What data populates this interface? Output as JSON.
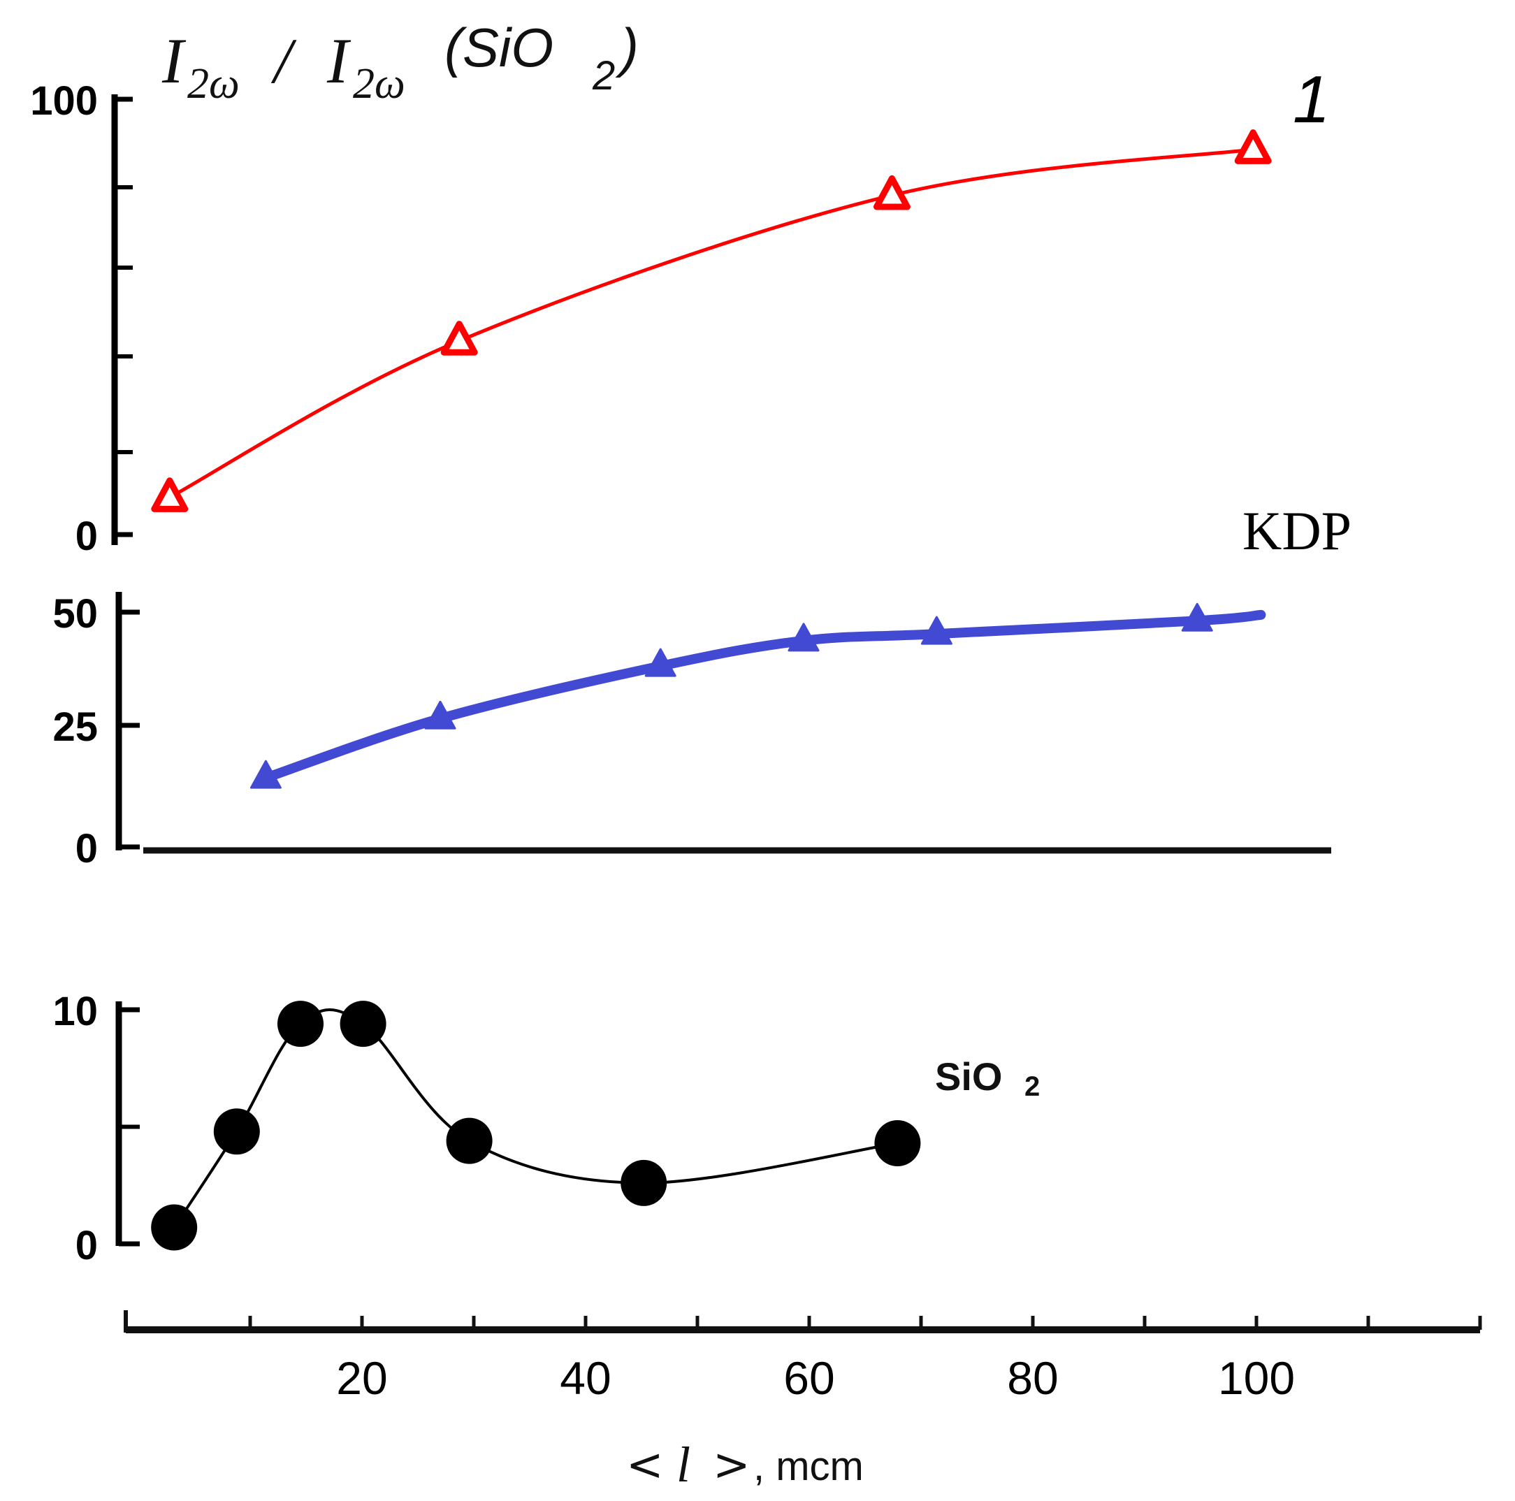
{
  "chart_data": {
    "type": "line",
    "title": "I2ω/I2ω(SiO2)",
    "title_parts": {
      "main": "I",
      "sub": "2ω",
      "slash": "/",
      "ref": "(SiO",
      "ref_sub": "2",
      "ref_close": ")"
    },
    "xlabel": "< l >, mcm",
    "xlabel_parts": {
      "open": "<",
      "var": "l",
      "close": ">",
      "unit": ", mcm"
    },
    "x_axis": {
      "range": [
        -1,
        120
      ],
      "major_ticks": [
        20,
        40,
        60,
        80,
        100
      ],
      "minor_ticks": [
        10,
        30,
        50,
        70,
        90,
        110,
        120
      ],
      "tick_labels": [
        "20",
        "40",
        "60",
        "80",
        "100"
      ]
    },
    "grid": false,
    "panels": [
      {
        "id": "top",
        "ylim": [
          0,
          100
        ],
        "y_tick_labels": [
          {
            "value": 100,
            "label": "100"
          },
          {
            "value": 0,
            "label": "0"
          }
        ],
        "y_minor_ticks": [
          20,
          40,
          60,
          80
        ],
        "series": [
          {
            "name": "1",
            "label": "1",
            "color": "#ff0000",
            "marker": "open-triangle",
            "x": [
              2.8,
              28.7,
              67.4,
              99.7
            ],
            "y": [
              9.0,
              43.5,
              78.0,
              88.6
            ]
          }
        ]
      },
      {
        "id": "middle",
        "ylim": [
          0,
          50
        ],
        "y_tick_labels": [
          {
            "value": 50,
            "label": "50"
          },
          {
            "value": 25,
            "label": "25"
          },
          {
            "value": 0,
            "label": "0"
          }
        ],
        "series": [
          {
            "name": "KDP",
            "label": "KDP",
            "color": "#4249d2",
            "marker": "filled-triangle",
            "x": [
              11.4,
              27.0,
              46.7,
              59.5,
              71.4,
              94.7
            ],
            "y": [
              14.2,
              26.5,
              38.1,
              43.7,
              45.2,
              48.1
            ],
            "line_end": {
              "x": 100.4,
              "y": 49.4
            }
          }
        ]
      },
      {
        "id": "bottom",
        "ylim": [
          0,
          10
        ],
        "y_tick_labels": [
          {
            "value": 10,
            "label": "10"
          },
          {
            "value": 0,
            "label": "0"
          }
        ],
        "y_minor_ticks": [
          5
        ],
        "series": [
          {
            "name": "SiO2",
            "label": "SiO",
            "label_sub": "2",
            "color": "#000000",
            "marker": "filled-circle",
            "x": [
              3.2,
              8.8,
              14.5,
              20.1,
              29.6,
              45.2,
              67.9
            ],
            "y": [
              0.7,
              4.8,
              9.4,
              9.4,
              4.4,
              2.6,
              4.3
            ]
          }
        ]
      }
    ]
  }
}
